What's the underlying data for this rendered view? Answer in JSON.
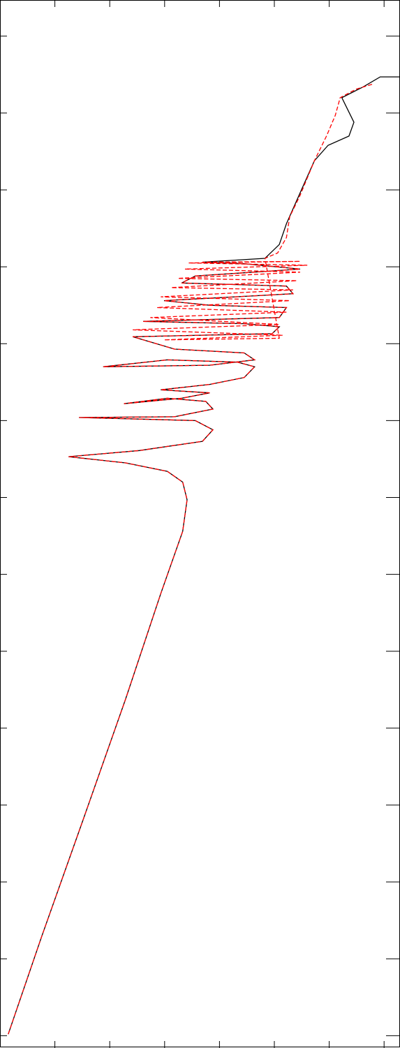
{
  "chart_data": {
    "type": "line",
    "xlim": [
      0,
      7.29
    ],
    "xticks": [
      1,
      2,
      3,
      4,
      5,
      6,
      7
    ],
    "ylim": [
      -0.16,
      13.47
    ],
    "yticks": [
      0,
      1,
      2,
      3,
      4,
      5,
      6,
      7,
      8,
      9,
      10,
      11,
      12,
      13
    ],
    "series": [
      {
        "color": "#000000",
        "dash": false,
        "x": [
          0.15,
          0.76,
          1.53,
          2.29,
          2.93,
          3.33,
          3.41,
          3.33,
          3.05,
          2.29,
          1.25,
          2.54,
          3.69,
          3.88,
          3.56,
          2.54,
          1.44,
          3.18,
          3.88,
          3.75,
          3.05,
          2.26,
          3.31,
          3.82,
          2.93,
          3.82,
          4.45,
          4.64,
          4.33,
          3.05,
          1.88,
          3.82,
          4.64,
          4.45,
          3.18,
          2.42,
          4.96,
          5.09,
          4.45,
          2.61,
          5.09,
          5.22,
          3.82,
          2.99,
          5.34,
          5.22,
          3.31,
          3.56,
          5.47,
          4.45,
          3.69,
          4.83,
          5.09,
          5.22,
          5.53,
          5.73,
          5.98,
          6.36,
          6.45,
          6.23,
          6.62,
          6.93,
          7.29
        ],
        "values": [
          0.02,
          1.29,
          2.84,
          4.38,
          5.75,
          6.56,
          6.97,
          7.2,
          7.34,
          7.45,
          7.53,
          7.61,
          7.73,
          7.88,
          8.0,
          8.02,
          8.04,
          8.05,
          8.15,
          8.25,
          8.29,
          8.22,
          8.29,
          8.36,
          8.4,
          8.47,
          8.56,
          8.7,
          8.76,
          8.79,
          8.7,
          8.72,
          8.79,
          8.88,
          8.93,
          9.09,
          9.13,
          9.22,
          9.26,
          9.29,
          9.34,
          9.47,
          9.5,
          9.56,
          9.65,
          9.75,
          9.79,
          9.88,
          9.97,
          10.04,
          10.06,
          10.11,
          10.29,
          10.56,
          11.06,
          11.38,
          11.58,
          11.7,
          11.88,
          12.2,
          12.34,
          12.47,
          12.47
        ]
      },
      {
        "color": "#ff0000",
        "dash": true,
        "x": [
          0.15,
          0.76,
          1.53,
          2.29,
          2.93,
          3.33,
          3.41,
          3.33,
          3.05,
          2.29,
          1.25,
          2.54,
          3.69,
          3.88,
          3.56,
          2.54,
          1.44,
          3.18,
          3.88,
          3.75,
          3.05,
          2.26,
          3.31,
          3.82,
          2.93,
          3.82,
          4.45,
          4.64,
          4.33,
          3.05,
          1.88,
          3.82,
          4.64,
          4.45,
          3.18,
          2.42,
          4.96,
          5.09,
          4.45,
          2.61,
          5.09,
          5.22,
          3.82,
          2.99,
          5.34,
          5.22,
          3.31,
          3.56,
          5.47,
          4.45,
          3.69,
          5.47,
          3.44,
          5.6,
          3.37,
          5.47,
          3.24,
          5.41,
          3.12,
          5.34,
          2.93,
          5.28,
          2.86,
          5.22,
          2.74,
          5.09,
          2.42,
          5.15,
          2.99,
          5.09,
          4.83,
          5.06,
          5.22,
          5.28,
          5.47,
          5.73,
          5.95,
          6.11,
          6.2,
          6.49,
          6.81
        ],
        "values": [
          0.02,
          1.29,
          2.84,
          4.38,
          5.75,
          6.56,
          6.97,
          7.2,
          7.34,
          7.45,
          7.53,
          7.61,
          7.73,
          7.88,
          8.0,
          8.02,
          8.04,
          8.05,
          8.15,
          8.25,
          8.29,
          8.22,
          8.29,
          8.36,
          8.4,
          8.47,
          8.56,
          8.7,
          8.76,
          8.79,
          8.7,
          8.72,
          8.79,
          8.88,
          8.93,
          9.09,
          9.13,
          9.22,
          9.26,
          9.29,
          9.34,
          9.47,
          9.5,
          9.56,
          9.65,
          9.75,
          9.79,
          9.88,
          9.97,
          10.04,
          10.06,
          10.07,
          10.05,
          10.02,
          9.97,
          9.93,
          9.85,
          9.82,
          9.73,
          9.7,
          9.61,
          9.56,
          9.47,
          9.41,
          9.34,
          9.25,
          9.18,
          9.11,
          9.05,
          9.07,
          10.11,
          10.18,
          10.38,
          10.65,
          10.93,
          11.38,
          11.7,
          11.97,
          12.2,
          12.31,
          12.38
        ]
      }
    ]
  }
}
